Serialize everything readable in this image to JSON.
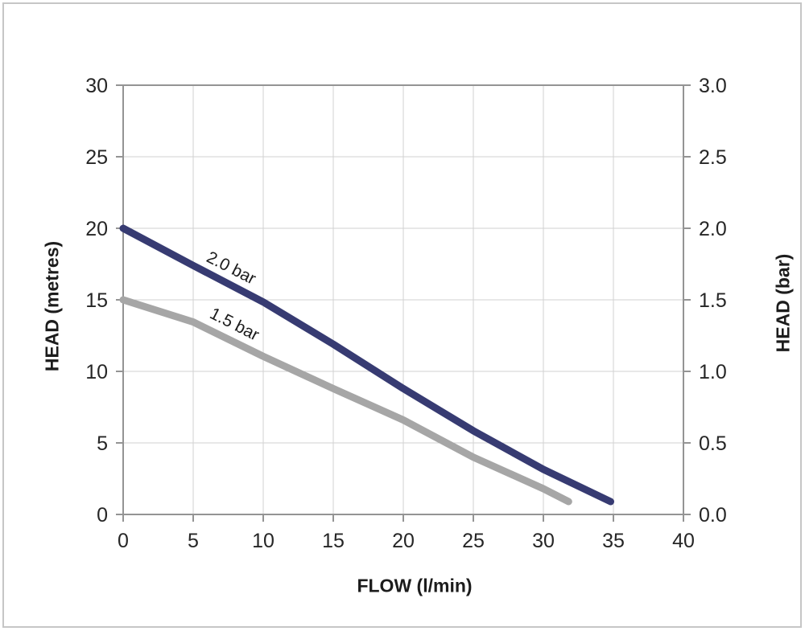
{
  "chart_data": {
    "type": "line",
    "title": "",
    "xlabel": "FLOW (l/min)",
    "ylabel_left": "HEAD (metres)",
    "ylabel_right": "HEAD (bar)",
    "xlim": [
      0,
      40
    ],
    "ylim_left": [
      0,
      30
    ],
    "ylim_right": [
      0.0,
      3.0
    ],
    "x_ticks": [
      "0",
      "5",
      "10",
      "15",
      "20",
      "25",
      "30",
      "35",
      "40"
    ],
    "y_ticks_left": [
      "0",
      "5",
      "10",
      "15",
      "20",
      "25",
      "30"
    ],
    "y_ticks_right": [
      "0.0",
      "0.5",
      "1.0",
      "1.5",
      "2.0",
      "2.5",
      "3.0"
    ],
    "grid": true,
    "legend_position": "inline-labels-on-curves",
    "series": [
      {
        "name": "2.0 bar",
        "color": "#373b72",
        "points": [
          [
            0,
            20.0
          ],
          [
            5,
            17.4
          ],
          [
            10,
            14.85
          ],
          [
            15,
            11.9
          ],
          [
            20,
            8.8
          ],
          [
            25,
            5.85
          ],
          [
            30,
            3.15
          ],
          [
            34.8,
            0.9
          ]
        ]
      },
      {
        "name": "1.5 bar",
        "color": "#a6a6a6",
        "points": [
          [
            0,
            15.0
          ],
          [
            5,
            13.45
          ],
          [
            10,
            11.05
          ],
          [
            15,
            8.8
          ],
          [
            20,
            6.6
          ],
          [
            25,
            4.0
          ],
          [
            30,
            1.8
          ],
          [
            31.8,
            0.9
          ]
        ]
      }
    ],
    "colors": {
      "frame_axis": "#949494",
      "gridline": "#d2d2d2",
      "tick_text": "#262626"
    }
  }
}
